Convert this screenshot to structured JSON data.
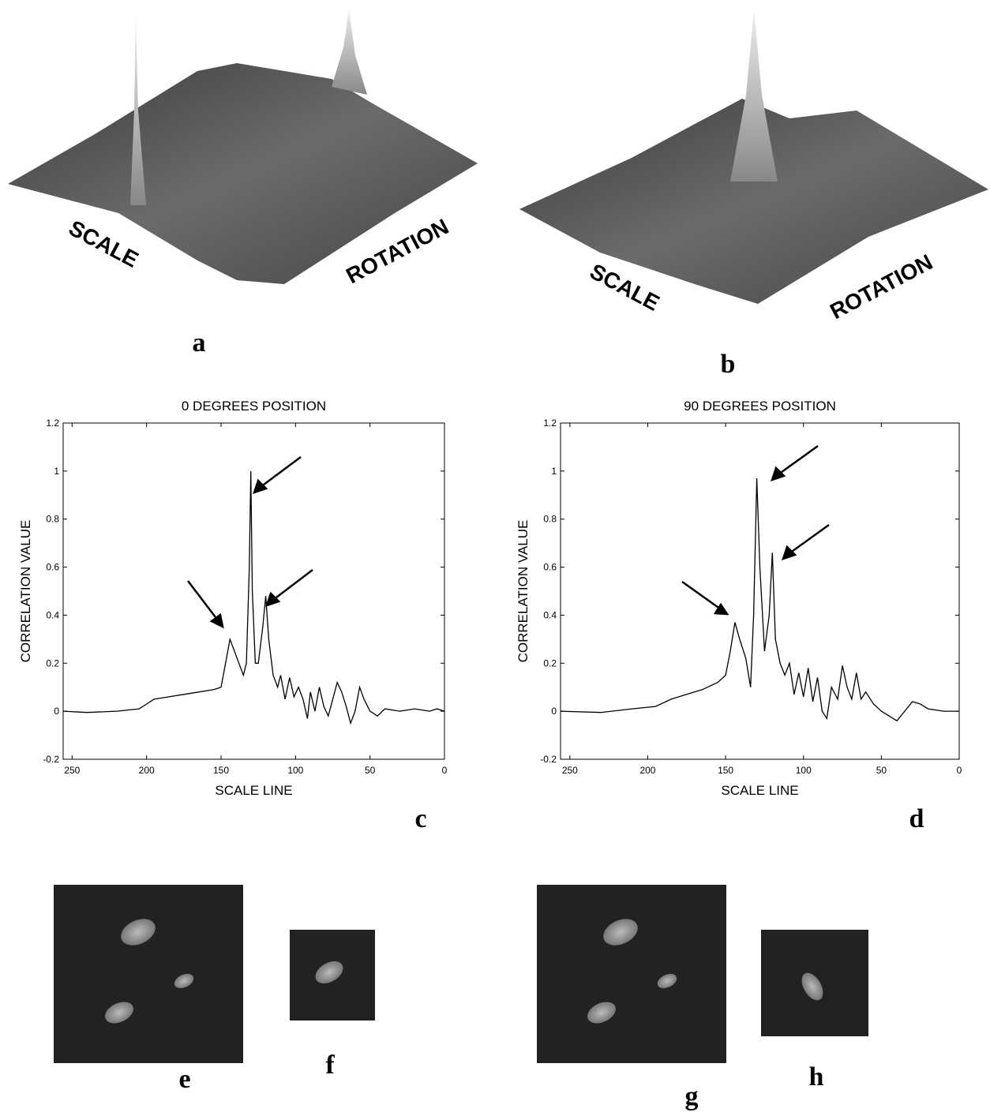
{
  "surfaces": [
    {
      "scale_label": "SCALE",
      "rotation_label": "ROTATION",
      "panel_label": "a"
    },
    {
      "scale_label": "SCALE",
      "rotation_label": "ROTATION",
      "panel_label": "b"
    }
  ],
  "chart_data": [
    {
      "type": "line",
      "title": "0 DEGREES POSITION",
      "xlabel": "SCALE LINE",
      "ylabel": "CORRELATION VALUE",
      "panel_label": "c",
      "xlim": [
        256,
        0
      ],
      "xticks": [
        250,
        200,
        150,
        100,
        50,
        0
      ],
      "ylim": [
        -0.2,
        1.2
      ],
      "yticks": [
        -0.2,
        0,
        0.2,
        0.4,
        0.6,
        0.8,
        1,
        1.2
      ],
      "grid": false,
      "color": "#000",
      "x": [
        256,
        240,
        220,
        205,
        200,
        195,
        185,
        175,
        165,
        155,
        150,
        147,
        144,
        141,
        138,
        135,
        133,
        131,
        130,
        129,
        127,
        125,
        122,
        120,
        118,
        115,
        112,
        110,
        107,
        104,
        101,
        98,
        95,
        92,
        90,
        87,
        84,
        81,
        78,
        75,
        72,
        69,
        66,
        63,
        60,
        57,
        54,
        50,
        45,
        40,
        30,
        20,
        10,
        5,
        0
      ],
      "values": [
        0.0,
        -0.005,
        0.0,
        0.01,
        0.03,
        0.05,
        0.06,
        0.07,
        0.08,
        0.09,
        0.1,
        0.2,
        0.3,
        0.25,
        0.2,
        0.15,
        0.2,
        0.6,
        1.0,
        0.5,
        0.2,
        0.2,
        0.35,
        0.48,
        0.3,
        0.15,
        0.1,
        0.15,
        0.05,
        0.14,
        0.06,
        0.1,
        0.05,
        -0.03,
        0.08,
        0.0,
        0.1,
        0.02,
        -0.02,
        0.05,
        0.12,
        0.08,
        0.02,
        -0.05,
        0.0,
        0.1,
        0.05,
        0.0,
        -0.02,
        0.01,
        0.0,
        0.01,
        0.0,
        0.01,
        0.0
      ]
    },
    {
      "type": "line",
      "title": "90 DEGREES POSITION",
      "xlabel": "SCALE LINE",
      "ylabel": "CORRELATION VALUE",
      "panel_label": "d",
      "xlim": [
        256,
        0
      ],
      "xticks": [
        250,
        200,
        150,
        100,
        50,
        0
      ],
      "ylim": [
        -0.2,
        1.2
      ],
      "yticks": [
        -0.2,
        0,
        0.2,
        0.4,
        0.6,
        0.8,
        1,
        1.2
      ],
      "grid": false,
      "color": "#000",
      "x": [
        256,
        230,
        210,
        195,
        185,
        175,
        165,
        155,
        150,
        147,
        144,
        141,
        137,
        134,
        132,
        130,
        128,
        125,
        122,
        120,
        118,
        115,
        112,
        109,
        106,
        103,
        100,
        97,
        94,
        91,
        88,
        85,
        82,
        78,
        75,
        72,
        69,
        66,
        63,
        60,
        55,
        50,
        45,
        40,
        35,
        30,
        25,
        20,
        10,
        0
      ],
      "values": [
        0.0,
        -0.005,
        0.01,
        0.02,
        0.05,
        0.07,
        0.09,
        0.12,
        0.15,
        0.25,
        0.37,
        0.3,
        0.22,
        0.1,
        0.4,
        0.97,
        0.6,
        0.25,
        0.4,
        0.66,
        0.3,
        0.2,
        0.15,
        0.2,
        0.07,
        0.16,
        0.06,
        0.18,
        0.04,
        0.14,
        0.0,
        -0.03,
        0.1,
        0.05,
        0.19,
        0.1,
        0.05,
        0.16,
        0.05,
        0.08,
        0.03,
        0.0,
        -0.02,
        -0.04,
        0.0,
        0.04,
        0.03,
        0.01,
        0.0,
        0.0
      ]
    }
  ],
  "images": [
    {
      "panel_label": "e"
    },
    {
      "panel_label": "f"
    },
    {
      "panel_label": "g"
    },
    {
      "panel_label": "h"
    }
  ]
}
